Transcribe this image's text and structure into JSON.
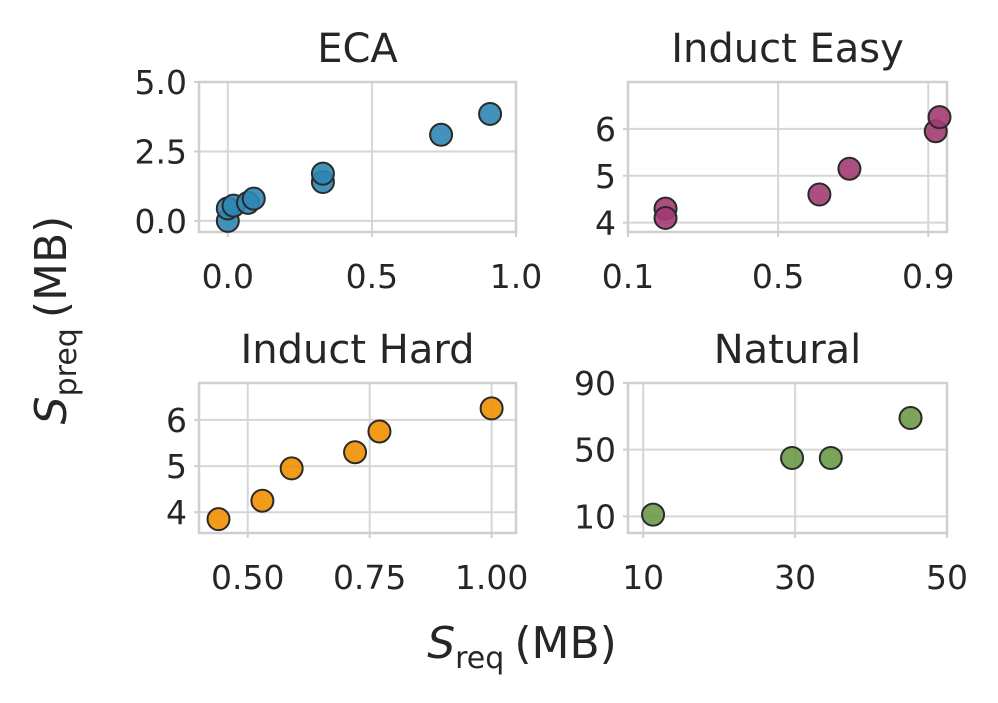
{
  "figure": {
    "ylabel": {
      "base": "S",
      "sub": "preq",
      "unit": "(MB)"
    },
    "xlabel": {
      "base": "S",
      "sub": "req",
      "unit": "(MB)"
    }
  },
  "chart_data": [
    {
      "type": "scatter",
      "title": "ECA",
      "color": "#2e86b3",
      "xlim": [
        -0.1,
        1.0
      ],
      "ylim": [
        -0.4,
        5.0
      ],
      "xticks": [
        0.0,
        0.5,
        1.0
      ],
      "xtick_labels": [
        "0.0",
        "0.5",
        "1.0"
      ],
      "yticks": [
        0.0,
        2.5,
        5.0
      ],
      "ytick_labels": [
        "0.0",
        "2.5",
        "5.0"
      ],
      "points": [
        {
          "x": 0.0,
          "y": 0.0
        },
        {
          "x": 0.0,
          "y": 0.45
        },
        {
          "x": 0.02,
          "y": 0.55
        },
        {
          "x": 0.07,
          "y": 0.65
        },
        {
          "x": 0.09,
          "y": 0.8
        },
        {
          "x": 0.33,
          "y": 1.4
        },
        {
          "x": 0.33,
          "y": 1.7
        },
        {
          "x": 0.74,
          "y": 3.1
        },
        {
          "x": 0.91,
          "y": 3.85
        }
      ]
    },
    {
      "type": "scatter",
      "title": "Induct Easy",
      "color": "#a23b72",
      "xlim": [
        0.1,
        0.95
      ],
      "ylim": [
        3.8,
        7.0
      ],
      "xticks": [
        0.1,
        0.5,
        0.9
      ],
      "xtick_labels": [
        "0.1",
        "0.5",
        "0.9"
      ],
      "yticks": [
        4,
        5,
        6
      ],
      "ytick_labels": [
        "4",
        "5",
        "6"
      ],
      "points": [
        {
          "x": 0.2,
          "y": 4.3
        },
        {
          "x": 0.2,
          "y": 4.1
        },
        {
          "x": 0.61,
          "y": 4.6
        },
        {
          "x": 0.69,
          "y": 5.15
        },
        {
          "x": 0.92,
          "y": 5.95
        },
        {
          "x": 0.93,
          "y": 6.25
        }
      ]
    },
    {
      "type": "scatter",
      "title": "Induct Hard",
      "color": "#f18f01",
      "xlim": [
        0.4,
        1.05
      ],
      "ylim": [
        3.55,
        6.8
      ],
      "xticks": [
        0.5,
        0.75,
        1.0
      ],
      "xtick_labels": [
        "0.50",
        "0.75",
        "1.00"
      ],
      "yticks": [
        4,
        5,
        6
      ],
      "ytick_labels": [
        "4",
        "5",
        "6"
      ],
      "points": [
        {
          "x": 0.44,
          "y": 3.85
        },
        {
          "x": 0.53,
          "y": 4.25
        },
        {
          "x": 0.59,
          "y": 4.95
        },
        {
          "x": 0.72,
          "y": 5.3
        },
        {
          "x": 0.77,
          "y": 5.75
        },
        {
          "x": 1.0,
          "y": 6.25
        }
      ]
    },
    {
      "type": "scatter",
      "title": "Natural",
      "color": "#6a9a48",
      "xlim": [
        8,
        50
      ],
      "ylim": [
        0,
        90
      ],
      "xticks": [
        10,
        30,
        50
      ],
      "xtick_labels": [
        "10",
        "30",
        "50"
      ],
      "yticks": [
        10,
        50,
        90
      ],
      "ytick_labels": [
        "10",
        "50",
        "90"
      ],
      "points": [
        {
          "x": 11.3,
          "y": 11
        },
        {
          "x": 29.6,
          "y": 45
        },
        {
          "x": 34.7,
          "y": 45
        },
        {
          "x": 45.2,
          "y": 69
        }
      ]
    }
  ]
}
